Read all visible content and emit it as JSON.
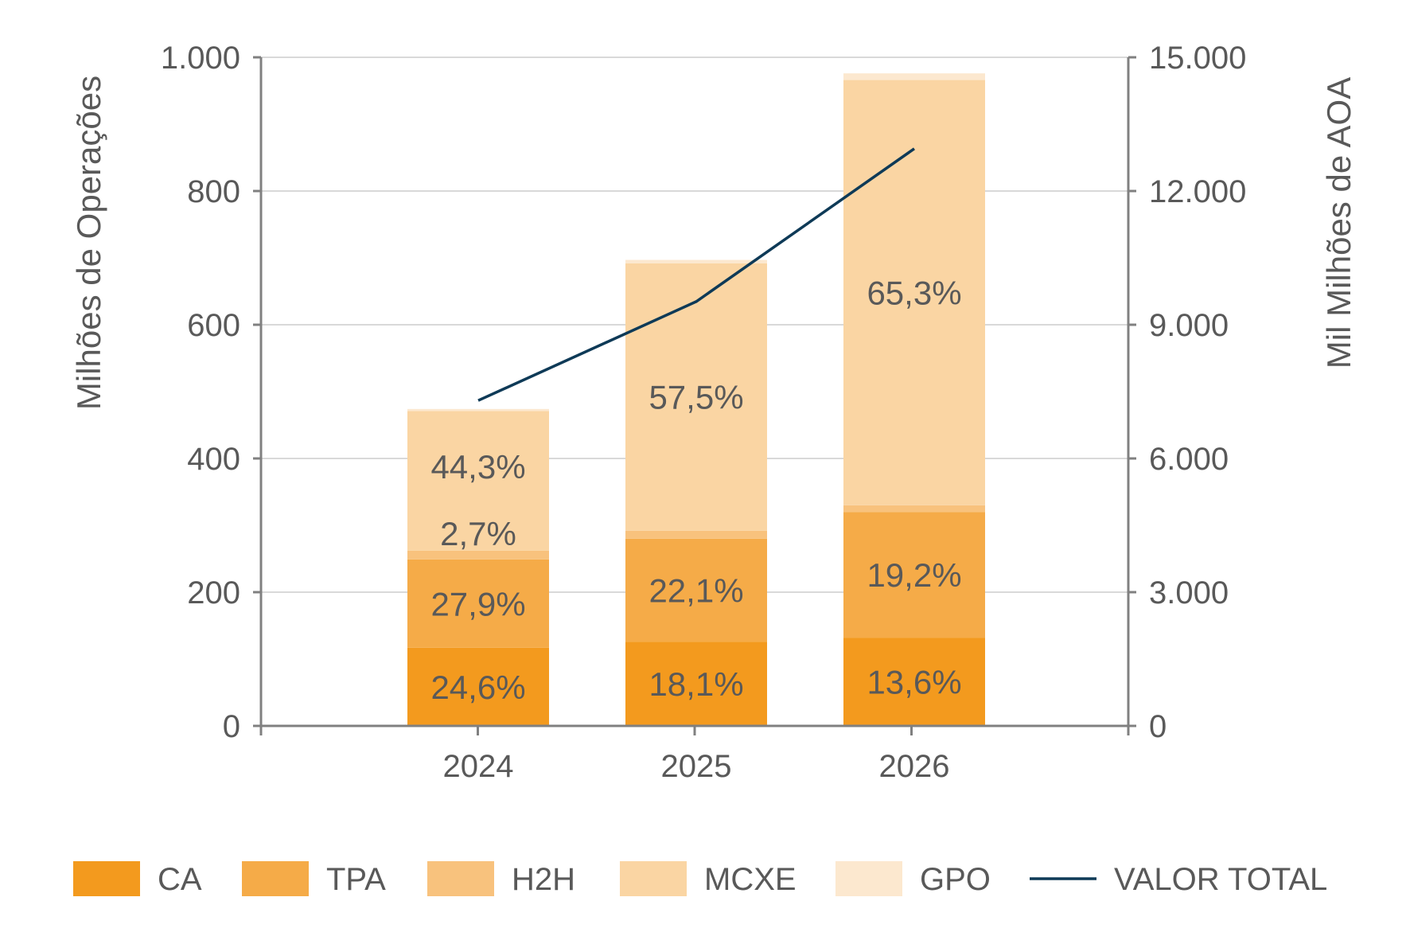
{
  "chart_data": {
    "type": "bar",
    "stacked": true,
    "categories": [
      "2024",
      "2025",
      "2026"
    ],
    "series": [
      {
        "name": "CA",
        "color": "#F39A1E",
        "values": [
          117,
          126,
          132
        ]
      },
      {
        "name": "TPA",
        "color": "#F5AB48",
        "values": [
          132,
          154,
          188
        ]
      },
      {
        "name": "H2H",
        "color": "#F8C27D",
        "values": [
          13,
          12,
          10
        ]
      },
      {
        "name": "MCXE",
        "color": "#FAD5A3",
        "values": [
          209,
          400,
          636
        ]
      },
      {
        "name": "GPO",
        "color": "#FCE8CF",
        "values": [
          3,
          5,
          10
        ]
      }
    ],
    "line_series": {
      "name": "VALOR TOTAL",
      "color": "#0E3A57",
      "axis": "right",
      "values": [
        7300,
        9520,
        12950
      ]
    },
    "data_labels": [
      {
        "category": "2024",
        "series": "CA",
        "text": "24,6%"
      },
      {
        "category": "2024",
        "series": "TPA",
        "text": "27,9%"
      },
      {
        "category": "2024",
        "series": "H2H",
        "text": "2,7%"
      },
      {
        "category": "2024",
        "series": "MCXE",
        "text": "44,3%"
      },
      {
        "category": "2025",
        "series": "CA",
        "text": "18,1%"
      },
      {
        "category": "2025",
        "series": "TPA",
        "text": "22,1%"
      },
      {
        "category": "2025",
        "series": "MCXE",
        "text": "57,5%"
      },
      {
        "category": "2026",
        "series": "CA",
        "text": "13,6%"
      },
      {
        "category": "2026",
        "series": "TPA",
        "text": "19,2%"
      },
      {
        "category": "2026",
        "series": "MCXE",
        "text": "65,3%"
      }
    ],
    "y_left": {
      "label": "Milhões de Operações",
      "lim": [
        0,
        1000
      ],
      "ticks": [
        0,
        200,
        400,
        600,
        800,
        1000
      ],
      "tick_labels": [
        "0",
        "200",
        "400",
        "600",
        "800",
        "1.000"
      ]
    },
    "y_right": {
      "label": "Mil Milhões de AOA",
      "lim": [
        0,
        15000
      ],
      "ticks": [
        0,
        3000,
        6000,
        9000,
        12000,
        15000
      ],
      "tick_labels": [
        "0",
        "3.000",
        "6.000",
        "9.000",
        "12.000",
        "15.000"
      ]
    },
    "grid": true,
    "legend": {
      "position": "bottom",
      "entries": [
        "CA",
        "TPA",
        "H2H",
        "MCXE",
        "GPO",
        "VALOR TOTAL"
      ]
    },
    "colors": {
      "axis": "#808080",
      "grid": "#D9D9D9",
      "text": "#595959"
    }
  }
}
